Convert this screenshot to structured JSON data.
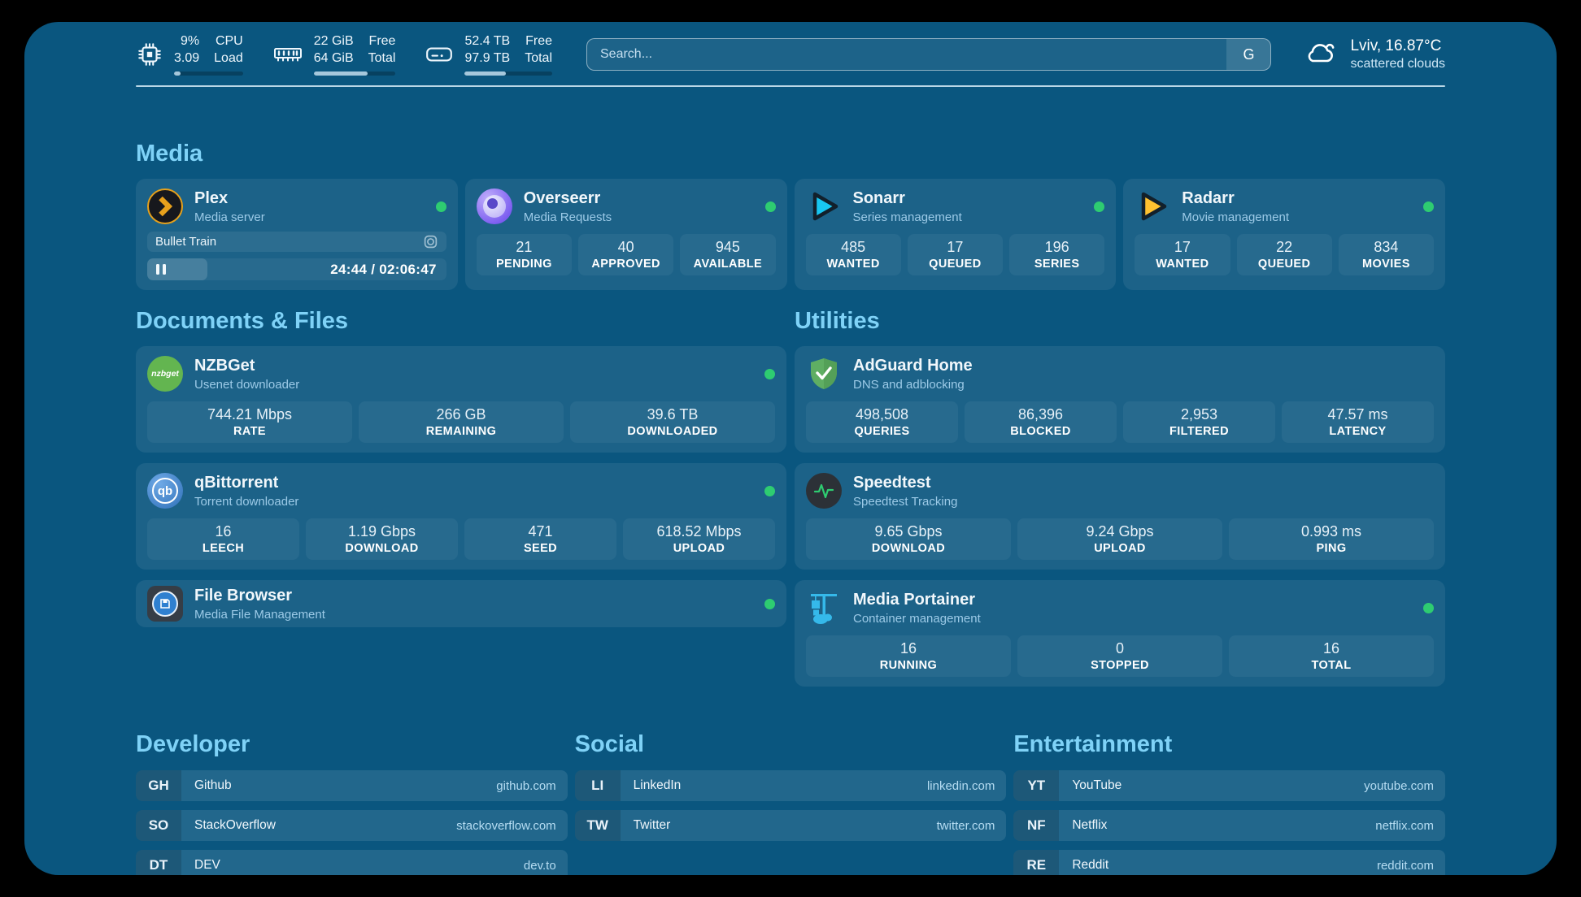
{
  "header": {
    "stats": [
      {
        "icon": "cpu-icon",
        "value_top": "9%",
        "value_bottom": "3.09",
        "label_top": "CPU",
        "label_bottom": "Load",
        "progress": 9
      },
      {
        "icon": "memory-icon",
        "value_top": "22 GiB",
        "value_bottom": "64 GiB",
        "label_top": "Free",
        "label_bottom": "Total",
        "progress": 66
      },
      {
        "icon": "disk-icon",
        "value_top": "52.4 TB",
        "value_bottom": "97.9 TB",
        "label_top": "Free",
        "label_bottom": "Total",
        "progress": 47
      }
    ],
    "search": {
      "placeholder": "Search...",
      "provider_button": "G"
    },
    "weather": {
      "location_temp": "Lviv, 16.87°C",
      "condition": "scattered clouds",
      "icon": "cloud-icon"
    }
  },
  "media": {
    "title": "Media",
    "plex": {
      "name": "Plex",
      "description": "Media server",
      "status": "online",
      "now_playing": "Bullet Train",
      "time": "24:44 / 02:06:47",
      "progress_percent": 20
    },
    "cards": [
      {
        "name": "Overseerr",
        "description": "Media Requests",
        "status": "online",
        "stats": [
          {
            "value": "21",
            "label": "PENDING"
          },
          {
            "value": "40",
            "label": "APPROVED"
          },
          {
            "value": "945",
            "label": "AVAILABLE"
          }
        ]
      },
      {
        "name": "Sonarr",
        "description": "Series management",
        "status": "online",
        "stats": [
          {
            "value": "485",
            "label": "WANTED"
          },
          {
            "value": "17",
            "label": "QUEUED"
          },
          {
            "value": "196",
            "label": "SERIES"
          }
        ]
      },
      {
        "name": "Radarr",
        "description": "Movie management",
        "status": "online",
        "stats": [
          {
            "value": "17",
            "label": "WANTED"
          },
          {
            "value": "22",
            "label": "QUEUED"
          },
          {
            "value": "834",
            "label": "MOVIES"
          }
        ]
      }
    ]
  },
  "documents": {
    "title": "Documents & Files",
    "cards": [
      {
        "name": "NZBGet",
        "description": "Usenet downloader",
        "status": "online",
        "stats": [
          {
            "value": "744.21 Mbps",
            "label": "RATE"
          },
          {
            "value": "266 GB",
            "label": "REMAINING"
          },
          {
            "value": "39.6 TB",
            "label": "DOWNLOADED"
          }
        ]
      },
      {
        "name": "qBittorrent",
        "description": "Torrent downloader",
        "status": "online",
        "stats": [
          {
            "value": "16",
            "label": "LEECH"
          },
          {
            "value": "1.19 Gbps",
            "label": "DOWNLOAD"
          },
          {
            "value": "471",
            "label": "SEED"
          },
          {
            "value": "618.52 Mbps",
            "label": "UPLOAD"
          }
        ]
      },
      {
        "name": "File Browser",
        "description": "Media File Management",
        "status": "online",
        "stats": []
      }
    ]
  },
  "utilities": {
    "title": "Utilities",
    "cards": [
      {
        "name": "AdGuard Home",
        "description": "DNS and adblocking",
        "stats": [
          {
            "value": "498,508",
            "label": "QUERIES"
          },
          {
            "value": "86,396",
            "label": "BLOCKED"
          },
          {
            "value": "2,953",
            "label": "FILTERED"
          },
          {
            "value": "47.57 ms",
            "label": "LATENCY"
          }
        ]
      },
      {
        "name": "Speedtest",
        "description": "Speedtest Tracking",
        "stats": [
          {
            "value": "9.65 Gbps",
            "label": "DOWNLOAD"
          },
          {
            "value": "9.24 Gbps",
            "label": "UPLOAD"
          },
          {
            "value": "0.993 ms",
            "label": "PING"
          }
        ]
      },
      {
        "name": "Media Portainer",
        "description": "Container management",
        "status": "online",
        "stats": [
          {
            "value": "16",
            "label": "RUNNING"
          },
          {
            "value": "0",
            "label": "STOPPED"
          },
          {
            "value": "16",
            "label": "TOTAL"
          }
        ]
      }
    ]
  },
  "bookmarks": {
    "developer": {
      "title": "Developer",
      "links": [
        {
          "abbr": "GH",
          "name": "Github",
          "url": "github.com"
        },
        {
          "abbr": "SO",
          "name": "StackOverflow",
          "url": "stackoverflow.com"
        },
        {
          "abbr": "DT",
          "name": "DEV",
          "url": "dev.to"
        }
      ]
    },
    "social": {
      "title": "Social",
      "links": [
        {
          "abbr": "LI",
          "name": "LinkedIn",
          "url": "linkedin.com"
        },
        {
          "abbr": "TW",
          "name": "Twitter",
          "url": "twitter.com"
        }
      ]
    },
    "entertainment": {
      "title": "Entertainment",
      "links": [
        {
          "abbr": "YT",
          "name": "YouTube",
          "url": "youtube.com"
        },
        {
          "abbr": "NF",
          "name": "Netflix",
          "url": "netflix.com"
        },
        {
          "abbr": "RE",
          "name": "Reddit",
          "url": "reddit.com"
        }
      ]
    }
  },
  "colors": {
    "status_green": "#2ecc71",
    "accent": "#7fd2f7",
    "board_bg": "#0a567f"
  }
}
